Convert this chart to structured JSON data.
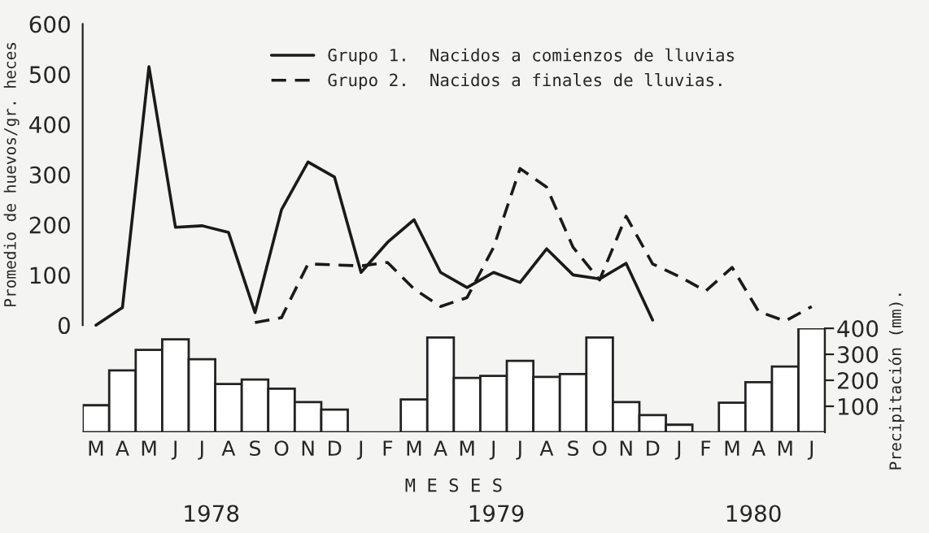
{
  "chart_data": [
    {
      "type": "line",
      "ylabel": "Promedio de huevos/gr. heces",
      "categories": [
        null,
        null,
        null,
        null,
        null,
        null,
        null,
        null,
        null,
        null,
        null,
        null,
        null,
        null,
        null,
        null,
        null,
        null,
        null,
        null,
        null,
        null,
        null,
        null,
        null,
        null,
        null,
        null
      ],
      "ylim": [
        0,
        600
      ],
      "yticks": [
        0,
        100,
        200,
        300,
        400,
        500,
        600
      ],
      "legend": "top right",
      "series": [
        {
          "name": "Grupo 1.  Nacidos a comienzos de lluvias",
          "color": "#1a1a1a",
          "line_style": "solid",
          "values": [
            0,
            35,
            515,
            195,
            198,
            185,
            25,
            230,
            325,
            295,
            105,
            165,
            210,
            105,
            75,
            105,
            85,
            152,
            100,
            92,
            123,
            10,
            null,
            null,
            null,
            null,
            null,
            null
          ]
        },
        {
          "name": "Grupo 2.  Nacidos a finales de lluvias.",
          "color": "#1a1a1a",
          "line_style": "dashed",
          "values": [
            null,
            null,
            null,
            null,
            null,
            null,
            5,
            15,
            122,
            120,
            118,
            125,
            72,
            37,
            55,
            155,
            312,
            275,
            155,
            90,
            217,
            122,
            97,
            68,
            115,
            27,
            8,
            37
          ]
        }
      ]
    },
    {
      "type": "bar",
      "ylabel": "Precipitación (mm).",
      "xlabel": "M E S E S",
      "categories": [
        "M",
        "A",
        "M",
        "J",
        "J",
        "A",
        "S",
        "O",
        "N",
        "D",
        "J",
        "F",
        "M",
        "A",
        "M",
        "J",
        "J",
        "A",
        "S",
        "O",
        "N",
        "D",
        "J",
        "F",
        "M",
        "A",
        "M",
        "J"
      ],
      "ylim": [
        0,
        400
      ],
      "yticks": [
        100,
        200,
        300,
        400
      ],
      "color": "#ffffff",
      "values": [
        104,
        238,
        317,
        358,
        281,
        186,
        203,
        168,
        116,
        87,
        null,
        null,
        126,
        365,
        209,
        217,
        275,
        213,
        224,
        365,
        116,
        66,
        29,
        null,
        114,
        193,
        253,
        400
      ],
      "annotations": [
        "1978",
        "1979",
        "1980"
      ]
    }
  ]
}
